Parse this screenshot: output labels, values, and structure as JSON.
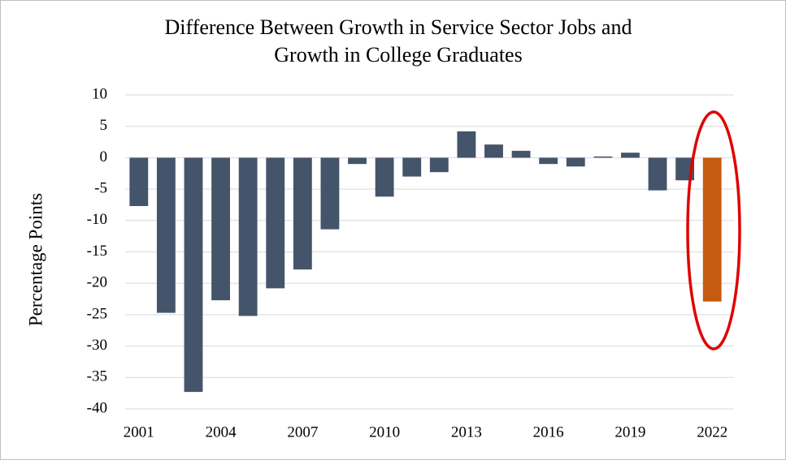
{
  "chart_data": {
    "type": "bar",
    "title": [
      "Difference Between Growth in Service Sector Jobs and",
      "Growth in College Graduates"
    ],
    "y_label": "Percentage Points",
    "categories": [
      "2001",
      null,
      null,
      "2004",
      null,
      null,
      "2007",
      null,
      null,
      "2010",
      null,
      null,
      "2013",
      null,
      null,
      "2016",
      null,
      null,
      "2019",
      null,
      null,
      "2022"
    ],
    "values": [
      -7.7,
      -24.7,
      -37.3,
      -22.7,
      -25.2,
      -20.8,
      -17.8,
      -11.4,
      -1.0,
      -6.2,
      -3.0,
      -2.3,
      4.2,
      2.1,
      1.1,
      -1.0,
      -1.4,
      0.2,
      0.8,
      -5.2,
      -3.6,
      -22.9
    ],
    "colors": [
      "#44546a",
      "#44546a",
      "#44546a",
      "#44546a",
      "#44546a",
      "#44546a",
      "#44546a",
      "#44546a",
      "#44546a",
      "#44546a",
      "#44546a",
      "#44546a",
      "#44546a",
      "#44546a",
      "#44546a",
      "#44546a",
      "#44546a",
      "#44546a",
      "#44546a",
      "#44546a",
      "#44546a",
      "#c55a11"
    ],
    "ylim": [
      -40,
      10
    ],
    "yticks": [
      10,
      5,
      0,
      -5,
      -10,
      -15,
      -20,
      -25,
      -30,
      -35,
      -40
    ],
    "grid": true
  }
}
